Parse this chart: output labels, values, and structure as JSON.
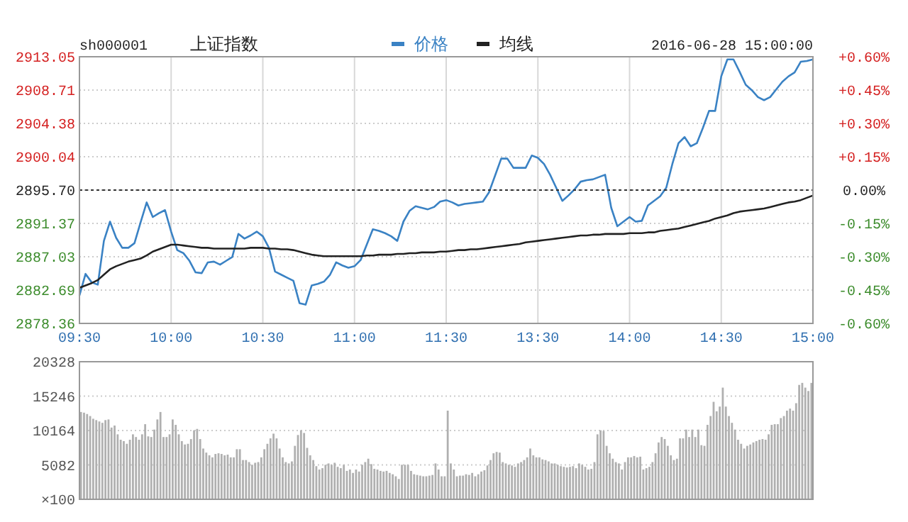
{
  "chart_data": [
    {
      "type": "line",
      "title": "上证指数",
      "subtitle": "sh000001",
      "annotations": [
        "2016-06-28 15:00:00"
      ],
      "categories": [
        "09:30",
        null,
        null,
        null,
        null,
        null,
        null,
        null,
        null,
        null,
        null,
        null,
        null,
        null,
        null,
        "10:00",
        null,
        null,
        null,
        null,
        null,
        null,
        null,
        null,
        null,
        null,
        null,
        null,
        null,
        null,
        "10:30",
        null,
        null,
        null,
        null,
        null,
        null,
        null,
        null,
        null,
        null,
        null,
        null,
        null,
        null,
        "11:00",
        null,
        null,
        null,
        null,
        null,
        null,
        null,
        null,
        null,
        null,
        null,
        null,
        null,
        null,
        "11:30",
        null,
        null,
        null,
        null,
        null,
        null,
        null,
        null,
        null,
        null,
        null,
        null,
        null,
        null,
        "13:30",
        null,
        null,
        null,
        null,
        null,
        null,
        null,
        null,
        null,
        null,
        null,
        null,
        null,
        null,
        "14:00",
        null,
        null,
        null,
        null,
        null,
        null,
        null,
        null,
        null,
        null,
        null,
        null,
        null,
        null,
        "14:30",
        null,
        null,
        null,
        null,
        null,
        null,
        null,
        null,
        null,
        null,
        null,
        null,
        null,
        null,
        "15:00"
      ],
      "ylim": [
        2878.36,
        2913.05
      ],
      "yticks": [
        {
          "value": 2878.36,
          "label": "2878.36"
        },
        {
          "value": 2882.69,
          "label": "2882.69"
        },
        {
          "value": 2887.03,
          "label": "2887.03"
        },
        {
          "value": 2891.37,
          "label": "2891.37"
        },
        {
          "value": 2895.7,
          "label": "2895.70"
        },
        {
          "value": 2900.04,
          "label": "2900.04"
        },
        {
          "value": 2904.38,
          "label": "2904.38"
        },
        {
          "value": 2908.71,
          "label": "2908.71"
        },
        {
          "value": 2913.05,
          "label": "2913.05"
        }
      ],
      "y2lim": [
        -0.6,
        0.6
      ],
      "y2ticks": [
        {
          "value": -0.6,
          "label": "-0.60%"
        },
        {
          "value": -0.45,
          "label": "-0.45%"
        },
        {
          "value": -0.3,
          "label": "-0.30%"
        },
        {
          "value": -0.15,
          "label": "-0.15%"
        },
        {
          "value": 0,
          "label": "0.00%"
        },
        {
          "value": 0.15,
          "label": "+0.15%"
        },
        {
          "value": 0.3,
          "label": "+0.30%"
        },
        {
          "value": 0.45,
          "label": "+0.45%"
        },
        {
          "value": 0.6,
          "label": "+0.60%"
        }
      ],
      "ref_lines": [
        {
          "axis": "y",
          "value": 2895.7,
          "color": "#333333",
          "line_style": "dotted"
        }
      ],
      "grid": true,
      "legend": "top",
      "marker": "none",
      "line_style": "solid",
      "series": [
        {
          "name": "价格",
          "color": "#3a82c4",
          "values": [
            2882.0,
            2884.8,
            2883.7,
            2883.4,
            2889.1,
            2891.6,
            2889.5,
            2888.2,
            2888.2,
            2888.8,
            2891.5,
            2894.1,
            2892.2,
            2892.7,
            2893.1,
            2890.3,
            2887.9,
            2887.5,
            2886.5,
            2885.0,
            2884.9,
            2886.3,
            2886.4,
            2886.0,
            2886.5,
            2887.0,
            2890.0,
            2889.4,
            2889.8,
            2890.3,
            2889.7,
            2888.2,
            2885.1,
            2884.7,
            2884.3,
            2883.9,
            2881.0,
            2880.8,
            2883.3,
            2883.5,
            2883.8,
            2884.7,
            2886.3,
            2885.9,
            2885.6,
            2885.8,
            2886.6,
            2888.6,
            2890.6,
            2890.4,
            2890.1,
            2889.7,
            2889.1,
            2891.6,
            2893.0,
            2893.6,
            2893.4,
            2893.2,
            2893.5,
            2894.2,
            2894.4,
            2894.1,
            2893.7,
            2893.9,
            2894.0,
            2894.1,
            2894.2,
            2895.4,
            2897.6,
            2899.8,
            2899.8,
            2898.6,
            2898.6,
            2898.6,
            2900.2,
            2899.9,
            2899.1,
            2897.7,
            2896.0,
            2894.3,
            2895.0,
            2895.8,
            2896.8,
            2897.0,
            2897.1,
            2897.4,
            2897.7,
            2893.4,
            2891.0,
            2891.6,
            2892.2,
            2891.6,
            2891.7,
            2893.7,
            2894.3,
            2894.9,
            2896.0,
            2899.1,
            2901.8,
            2902.6,
            2901.4,
            2901.8,
            2903.8,
            2906.0,
            2906.0,
            2910.5,
            2912.7,
            2912.7,
            2911.1,
            2909.4,
            2908.7,
            2907.8,
            2907.4,
            2907.8,
            2908.8,
            2909.8,
            2910.5,
            2911.0,
            2912.4,
            2912.5,
            2912.7
          ]
        },
        {
          "name": "均线",
          "color": "#222222",
          "values": [
            2883.0,
            2883.3,
            2883.6,
            2884.0,
            2884.7,
            2885.4,
            2885.8,
            2886.1,
            2886.4,
            2886.6,
            2886.8,
            2887.2,
            2887.7,
            2888.0,
            2888.3,
            2888.6,
            2888.6,
            2888.5,
            2888.4,
            2888.3,
            2888.2,
            2888.2,
            2888.1,
            2888.1,
            2888.1,
            2888.1,
            2888.1,
            2888.1,
            2888.2,
            2888.2,
            2888.2,
            2888.1,
            2888.1,
            2888.0,
            2888.0,
            2887.9,
            2887.7,
            2887.5,
            2887.3,
            2887.2,
            2887.1,
            2887.1,
            2887.1,
            2887.1,
            2887.1,
            2887.1,
            2887.1,
            2887.2,
            2887.2,
            2887.3,
            2887.3,
            2887.3,
            2887.4,
            2887.4,
            2887.5,
            2887.5,
            2887.6,
            2887.6,
            2887.6,
            2887.7,
            2887.7,
            2887.8,
            2887.9,
            2887.9,
            2888.0,
            2888.0,
            2888.1,
            2888.2,
            2888.3,
            2888.4,
            2888.5,
            2888.6,
            2888.7,
            2888.9,
            2889.0,
            2889.1,
            2889.2,
            2889.3,
            2889.4,
            2889.5,
            2889.6,
            2889.7,
            2889.8,
            2889.8,
            2889.9,
            2889.9,
            2890.0,
            2890.0,
            2890.0,
            2890.0,
            2890.1,
            2890.1,
            2890.1,
            2890.2,
            2890.2,
            2890.4,
            2890.5,
            2890.6,
            2890.7,
            2890.9,
            2891.1,
            2891.3,
            2891.5,
            2891.7,
            2892.0,
            2892.2,
            2892.4,
            2892.7,
            2892.9,
            2893.0,
            2893.1,
            2893.2,
            2893.3,
            2893.5,
            2893.7,
            2893.9,
            2894.1,
            2894.2,
            2894.4,
            2894.7,
            2895.0
          ]
        }
      ]
    },
    {
      "type": "bar",
      "color": "#b0b0b0",
      "tick_labels": "y",
      "grid": "y",
      "ylabel": "×100",
      "categories": [
        null,
        null,
        null,
        null,
        null,
        null,
        null,
        null,
        null,
        null,
        null,
        null,
        null,
        null,
        null,
        null,
        null,
        null,
        null,
        null,
        null,
        null,
        null,
        null,
        null,
        null,
        null,
        null,
        null,
        null,
        null,
        null,
        null,
        null,
        null,
        null,
        null,
        null,
        null,
        null,
        null,
        null,
        null,
        null,
        null,
        null,
        null,
        null,
        null,
        null,
        null,
        null,
        null,
        null,
        null,
        null,
        null,
        null,
        null,
        null,
        null,
        null,
        null,
        null,
        null,
        null,
        null,
        null,
        null,
        null,
        null,
        null,
        null,
        null,
        null,
        null,
        null,
        null,
        null,
        null,
        null,
        null,
        null,
        null,
        null,
        null,
        null,
        null,
        null,
        null,
        null,
        null,
        null,
        null,
        null,
        null,
        null,
        null,
        null,
        null,
        null,
        null,
        null,
        null,
        null,
        null,
        null,
        null,
        null,
        null,
        null,
        null,
        null,
        null,
        null,
        null,
        null,
        null,
        null,
        null,
        null,
        null,
        null,
        null,
        null,
        null,
        null,
        null,
        null,
        null,
        null,
        null,
        null,
        null,
        null,
        null,
        null,
        null,
        null,
        null,
        null,
        null,
        null,
        null,
        null,
        null,
        null,
        null,
        null,
        null,
        null,
        null,
        null,
        null,
        null,
        null,
        null,
        null,
        null,
        null,
        null,
        null,
        null,
        null,
        null,
        null,
        null,
        null,
        null,
        null,
        null,
        null,
        null,
        null,
        null,
        null,
        null,
        null,
        null,
        null,
        null,
        null,
        null,
        null,
        null,
        null,
        null,
        null,
        null,
        null,
        null,
        null,
        null,
        null,
        null,
        null,
        null,
        null,
        null,
        null,
        null,
        null,
        null,
        null,
        null,
        null,
        null,
        null,
        null,
        null,
        null,
        null,
        null,
        null,
        null,
        null,
        null,
        null,
        null,
        null,
        null,
        null,
        null,
        null,
        null,
        null,
        null,
        null,
        null,
        null,
        null,
        null,
        null,
        null,
        null,
        null,
        null,
        null,
        null,
        null
      ],
      "ylim": [
        0,
        20328
      ],
      "yticks": [
        5082,
        10164,
        15246,
        20328
      ],
      "values": [
        12900,
        12800,
        12600,
        12300,
        11900,
        11700,
        11500,
        11300,
        11700,
        11800,
        10600,
        10900,
        9600,
        8800,
        8600,
        8200,
        8800,
        9600,
        9200,
        8800,
        9600,
        11100,
        9300,
        9200,
        10300,
        11800,
        12900,
        9200,
        9200,
        9600,
        11800,
        11000,
        9600,
        8600,
        8100,
        8200,
        8900,
        10200,
        10400,
        8900,
        7500,
        6900,
        6500,
        6200,
        6700,
        6800,
        6700,
        6500,
        6600,
        6200,
        6200,
        7400,
        7400,
        5800,
        5800,
        5500,
        5100,
        5400,
        5500,
        6200,
        7400,
        8200,
        9000,
        9700,
        9000,
        7500,
        6200,
        5500,
        5300,
        5600,
        7900,
        9500,
        10200,
        9800,
        7600,
        6500,
        5800,
        4900,
        4400,
        4600,
        5100,
        5300,
        5100,
        5400,
        4800,
        4600,
        5100,
        4200,
        4400,
        3900,
        4400,
        4100,
        5100,
        5500,
        6000,
        5200,
        4500,
        4400,
        4200,
        4100,
        4200,
        3900,
        3700,
        3400,
        3000,
        5100,
        5100,
        5100,
        4200,
        3700,
        3600,
        3500,
        3400,
        3400,
        3500,
        3600,
        5300,
        4400,
        3400,
        3400,
        13100,
        5300,
        4400,
        3400,
        3500,
        3500,
        3700,
        3600,
        3900,
        3400,
        3700,
        4100,
        4300,
        5000,
        5800,
        6800,
        7000,
        6900,
        5500,
        5300,
        5100,
        5000,
        4800,
        5300,
        5500,
        5800,
        6200,
        7500,
        6500,
        6200,
        6200,
        5900,
        5800,
        5600,
        5300,
        5300,
        5100,
        4900,
        4800,
        4700,
        4800,
        4900,
        4600,
        5300,
        5100,
        4800,
        4400,
        4500,
        5500,
        9600,
        10200,
        10100,
        7900,
        6800,
        6000,
        5500,
        5300,
        4400,
        5500,
        6200,
        6200,
        6400,
        6200,
        6300,
        4400,
        4600,
        4800,
        5500,
        6800,
        8400,
        9200,
        8900,
        7900,
        6500,
        5800,
        6000,
        9000,
        9000,
        10300,
        9200,
        10300,
        9200,
        10300,
        8000,
        7900,
        11000,
        12300,
        14400,
        13000,
        13700,
        16500,
        13700,
        12300,
        11300,
        10300,
        8800,
        8200,
        7500,
        7900,
        8100,
        8400,
        8600,
        8800,
        8900,
        8800,
        9600,
        11000,
        11100,
        11100,
        12000,
        12300,
        13100,
        13400,
        13100,
        14200,
        16900,
        17200,
        16500,
        16000,
        17200
      ]
    }
  ]
}
